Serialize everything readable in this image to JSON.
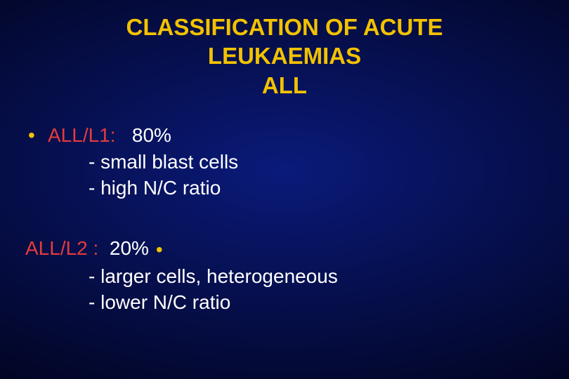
{
  "styles": {
    "title_color": "#f2c200",
    "title_fontsize": 33,
    "body_fontsize": 28,
    "heading_color": "#e63b3b",
    "body_color": "#ffffff",
    "bullet_color": "#f2c200",
    "background_gradient_center": "#0a1a7a",
    "background_gradient_mid": "#061050",
    "background_gradient_edge": "#020420"
  },
  "title": {
    "line1": "CLASSIFICATION OF ACUTE",
    "line2": "LEUKAEMIAS",
    "line3": "ALL"
  },
  "item1": {
    "heading": "ALL/L1:",
    "pct": "80%",
    "sub1": "-  small blast cells",
    "sub2": "-  high N/C ratio"
  },
  "item2": {
    "heading": "ALL/L2 :",
    "pct": "20%",
    "sub1": "-  larger cells, heterogeneous",
    "sub2": "-  lower N/C ratio"
  },
  "bullet_glyph": "•"
}
